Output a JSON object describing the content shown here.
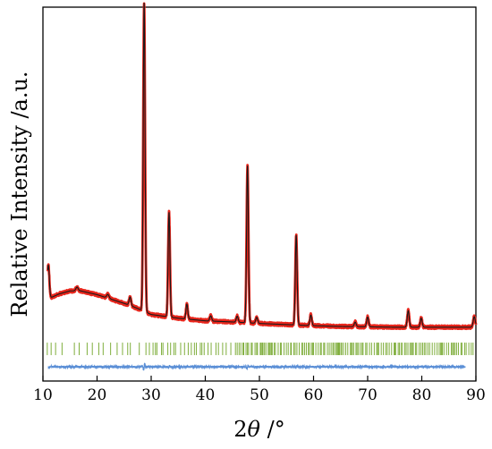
{
  "chart_data": {
    "type": "line",
    "title": "",
    "xlabel_prefix": "2",
    "xlabel_symbol": "θ",
    "xlabel_suffix": " /°",
    "ylabel": "Relative Intensity /a.u.",
    "xlim": [
      10,
      90
    ],
    "ylim": [
      0,
      100
    ],
    "x_ticks": [
      10,
      20,
      30,
      40,
      50,
      60,
      70,
      80,
      90
    ],
    "x_tick_labels": [
      "10",
      "20",
      "30",
      "40",
      "50",
      "60",
      "70",
      "80",
      "90"
    ],
    "grid": false,
    "y_tick_labels_shown": false,
    "colors": {
      "observed": "#e8261c",
      "calculated": "#1a1a1a",
      "bragg": "#7fae3c",
      "difference": "#5b8fd6"
    },
    "baseline": [
      [
        11,
        22
      ],
      [
        13,
        23.3
      ],
      [
        15,
        24.1
      ],
      [
        17,
        24.1
      ],
      [
        20,
        23.1
      ],
      [
        23,
        21.7
      ],
      [
        26,
        20.3
      ],
      [
        28,
        19.1
      ],
      [
        30,
        17.8
      ],
      [
        35,
        16.8
      ],
      [
        40,
        16.1
      ],
      [
        45,
        15.8
      ],
      [
        50,
        15.4
      ],
      [
        55,
        15.1
      ],
      [
        60,
        14.8
      ],
      [
        65,
        14.6
      ],
      [
        70,
        14.5
      ],
      [
        75,
        14.4
      ],
      [
        80,
        14.4
      ],
      [
        85,
        14.4
      ],
      [
        90,
        14.4
      ]
    ],
    "peaks": [
      {
        "x": 11.0,
        "h": 9.0,
        "w": 0.18
      },
      {
        "x": 16.3,
        "h": 1.0,
        "w": 0.22
      },
      {
        "x": 22.0,
        "h": 1.0,
        "w": 0.22
      },
      {
        "x": 26.1,
        "h": 2.2,
        "w": 0.18
      },
      {
        "x": 28.7,
        "h": 82.5,
        "w": 0.17
      },
      {
        "x": 33.3,
        "h": 28.0,
        "w": 0.17
      },
      {
        "x": 36.6,
        "h": 4.0,
        "w": 0.17
      },
      {
        "x": 41.0,
        "h": 1.4,
        "w": 0.18
      },
      {
        "x": 45.9,
        "h": 1.6,
        "w": 0.18
      },
      {
        "x": 47.8,
        "h": 42.0,
        "w": 0.17
      },
      {
        "x": 49.5,
        "h": 1.6,
        "w": 0.18
      },
      {
        "x": 56.8,
        "h": 24.0,
        "w": 0.17
      },
      {
        "x": 59.5,
        "h": 2.8,
        "w": 0.18
      },
      {
        "x": 67.7,
        "h": 1.2,
        "w": 0.18
      },
      {
        "x": 70.0,
        "h": 2.6,
        "w": 0.18
      },
      {
        "x": 77.5,
        "h": 4.4,
        "w": 0.18
      },
      {
        "x": 79.9,
        "h": 2.4,
        "w": 0.18
      },
      {
        "x": 89.7,
        "h": 2.8,
        "w": 0.2
      }
    ],
    "bragg_range": [
      10.8,
      89.9
    ],
    "bragg_level": 8.6,
    "difference_level": 3.8,
    "difference_range": [
      11,
      88
    ]
  }
}
